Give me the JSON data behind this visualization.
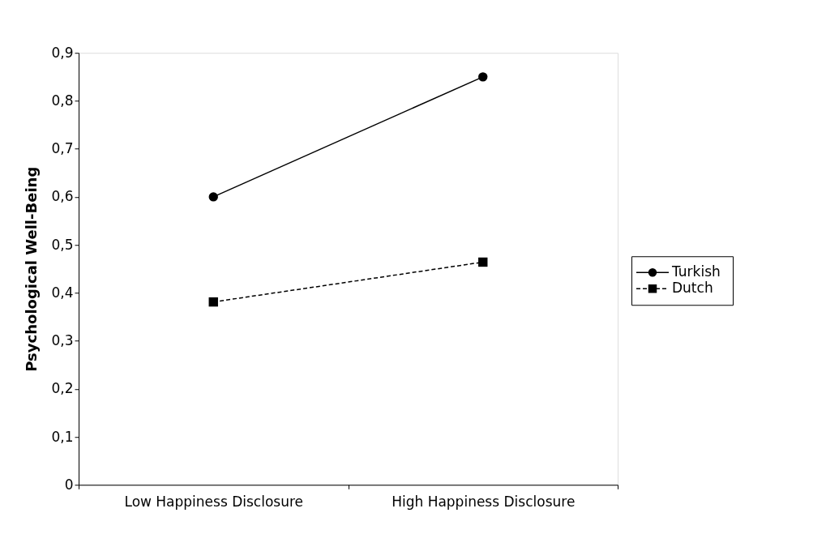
{
  "chart_data": {
    "type": "line",
    "ylabel": "Psychological Well-Being",
    "categories": [
      "Low Happiness Disclosure",
      "High Happiness Disclosure"
    ],
    "series": [
      {
        "name": "Turkish",
        "color": "#000000",
        "values": [
          0.6,
          0.85
        ],
        "marker": "circle",
        "line_style": "solid"
      },
      {
        "name": "Dutch",
        "color": "#000000",
        "values": [
          0.381,
          0.464
        ],
        "marker": "square",
        "line_style": "dashed"
      }
    ],
    "ylim": [
      0,
      0.9
    ],
    "yticks": [
      0,
      {
        "value": 0.1,
        "label": "0,1"
      },
      {
        "value": 0.2,
        "label": "0,2"
      },
      {
        "value": 0.3,
        "label": "0,3"
      },
      {
        "value": 0.4,
        "label": "0,4"
      },
      {
        "value": 0.5,
        "label": "0,5"
      },
      {
        "value": 0.6,
        "label": "0,6"
      },
      {
        "value": 0.7,
        "label": "0,7"
      },
      {
        "value": 0.8,
        "label": "0,8"
      },
      {
        "value": 0.9,
        "label": "0,9"
      }
    ],
    "grid": false,
    "legend": "right"
  }
}
